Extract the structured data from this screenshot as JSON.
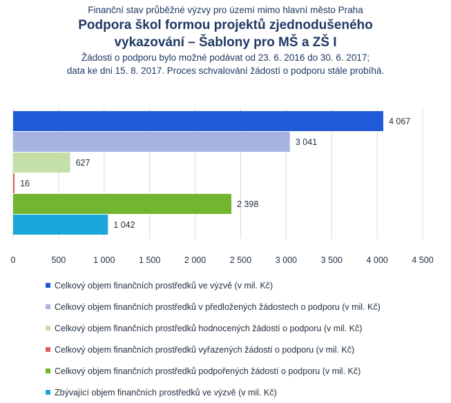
{
  "header": {
    "supertitle": "Finanční stav průběžné výzvy pro území mimo hlavní město Praha",
    "title_line1": "Podpora škol formou projektů zjednodušeného",
    "title_line2": "vykazování – Šablony pro MŠ a ZŠ I",
    "subtitle_line1": "Žádosti o podporu bylo možné podávat od 23. 6. 2016 do 30. 6. 2017;",
    "subtitle_line2": "data ke dni 15. 8. 2017. Proces schvalování žádostí o podporu stále probíhá."
  },
  "chart_data": {
    "type": "bar",
    "orientation": "horizontal",
    "grid": true,
    "xlim": [
      0,
      4500
    ],
    "xticks": [
      0,
      500,
      1000,
      1500,
      2000,
      2500,
      3000,
      3500,
      4000,
      4500
    ],
    "xtick_labels": [
      "0",
      "500",
      "1 000",
      "1 500",
      "2 000",
      "2 500",
      "3 000",
      "3 500",
      "4 000",
      "4 500"
    ],
    "legend_position": "bottom",
    "series": [
      {
        "name": "Celkový objem finančních prostředků ve výzvě (v mil. Kč)",
        "value": 4067,
        "label": "4 067",
        "color": "#1f5bd6"
      },
      {
        "name": "Celkový objem finančních prostředků v předložených žádostech o podporu (v mil. Kč)",
        "value": 3041,
        "label": "3 041",
        "color": "#a6b3e0"
      },
      {
        "name": "Celkový objem finančních prostředků hodnocených žádostí o podporu (v mil. Kč)",
        "value": 627,
        "label": "627",
        "color": "#c4dfa8"
      },
      {
        "name": "Celkový objem finančních prostředků vyřazených žádostí o podporu (v mil. Kč)",
        "value": 16,
        "label": "16",
        "color": "#e06060"
      },
      {
        "name": "Celkový objem finančních prostředků podpořených žádostí o podporu (v mil. Kč)",
        "value": 2398,
        "label": "2 398",
        "color": "#72b52e"
      },
      {
        "name": "Zbývající objem finančních prostředků ve výzvě (v mil. Kč)",
        "value": 1042,
        "label": "1 042",
        "color": "#1aa6d9"
      }
    ]
  }
}
